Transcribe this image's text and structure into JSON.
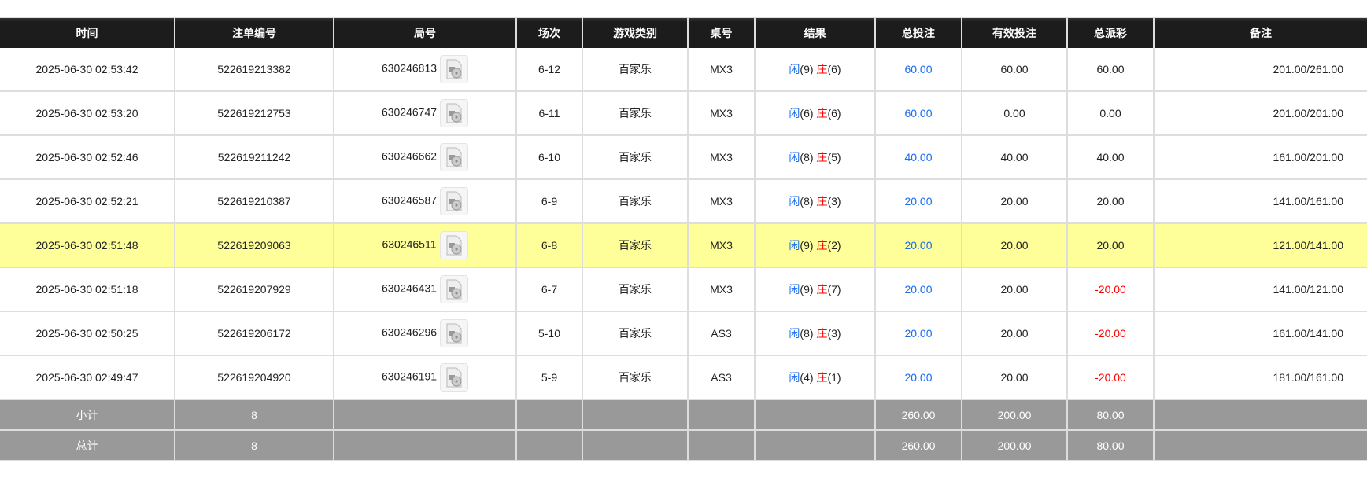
{
  "headers": [
    "时间",
    "注单编号",
    "局号",
    "场次",
    "游戏类别",
    "桌号",
    "结果",
    "总投注",
    "有效投注",
    "总派彩",
    "备注"
  ],
  "colors": {
    "player": "#1a6cf0",
    "banker": "#ff0000",
    "negative": "#ff0000",
    "highlight": "#ffff99"
  },
  "rows": [
    {
      "time": "2025-06-30 02:53:42",
      "bet_id": "522619213382",
      "round": "630246813",
      "shoe": "6-12",
      "game": "百家乐",
      "table": "MX3",
      "p": "闲",
      "pv": "(9)",
      "b": "庄",
      "bv": "(6)",
      "total": "60.00",
      "valid": "60.00",
      "payout": "60.00",
      "neg": false,
      "note": "201.00/261.00"
    },
    {
      "time": "2025-06-30 02:53:20",
      "bet_id": "522619212753",
      "round": "630246747",
      "shoe": "6-11",
      "game": "百家乐",
      "table": "MX3",
      "p": "闲",
      "pv": "(6)",
      "b": "庄",
      "bv": "(6)",
      "total": "60.00",
      "valid": "0.00",
      "payout": "0.00",
      "neg": false,
      "note": "201.00/201.00"
    },
    {
      "time": "2025-06-30 02:52:46",
      "bet_id": "522619211242",
      "round": "630246662",
      "shoe": "6-10",
      "game": "百家乐",
      "table": "MX3",
      "p": "闲",
      "pv": "(8)",
      "b": "庄",
      "bv": "(5)",
      "total": "40.00",
      "valid": "40.00",
      "payout": "40.00",
      "neg": false,
      "note": "161.00/201.00"
    },
    {
      "time": "2025-06-30 02:52:21",
      "bet_id": "522619210387",
      "round": "630246587",
      "shoe": "6-9",
      "game": "百家乐",
      "table": "MX3",
      "p": "闲",
      "pv": "(8)",
      "b": "庄",
      "bv": "(3)",
      "total": "20.00",
      "valid": "20.00",
      "payout": "20.00",
      "neg": false,
      "note": "141.00/161.00"
    },
    {
      "time": "2025-06-30 02:51:48",
      "bet_id": "522619209063",
      "round": "630246511",
      "shoe": "6-8",
      "game": "百家乐",
      "table": "MX3",
      "p": "闲",
      "pv": "(9)",
      "b": "庄",
      "bv": "(2)",
      "total": "20.00",
      "valid": "20.00",
      "payout": "20.00",
      "neg": false,
      "note": "121.00/141.00",
      "highlight": true
    },
    {
      "time": "2025-06-30 02:51:18",
      "bet_id": "522619207929",
      "round": "630246431",
      "shoe": "6-7",
      "game": "百家乐",
      "table": "MX3",
      "p": "闲",
      "pv": "(9)",
      "b": "庄",
      "bv": "(7)",
      "total": "20.00",
      "valid": "20.00",
      "payout": "-20.00",
      "neg": true,
      "note": "141.00/121.00"
    },
    {
      "time": "2025-06-30 02:50:25",
      "bet_id": "522619206172",
      "round": "630246296",
      "shoe": "5-10",
      "game": "百家乐",
      "table": "AS3",
      "p": "闲",
      "pv": "(8)",
      "b": "庄",
      "bv": "(3)",
      "total": "20.00",
      "valid": "20.00",
      "payout": "-20.00",
      "neg": true,
      "note": "161.00/141.00"
    },
    {
      "time": "2025-06-30 02:49:47",
      "bet_id": "522619204920",
      "round": "630246191",
      "shoe": "5-9",
      "game": "百家乐",
      "table": "AS3",
      "p": "闲",
      "pv": "(4)",
      "b": "庄",
      "bv": "(1)",
      "total": "20.00",
      "valid": "20.00",
      "payout": "-20.00",
      "neg": true,
      "note": "181.00/161.00"
    }
  ],
  "subtotal": {
    "label": "小计",
    "count": "8",
    "total": "260.00",
    "valid": "200.00",
    "payout": "80.00"
  },
  "grandtotal": {
    "label": "总计",
    "count": "8",
    "total": "260.00",
    "valid": "200.00",
    "payout": "80.00"
  }
}
